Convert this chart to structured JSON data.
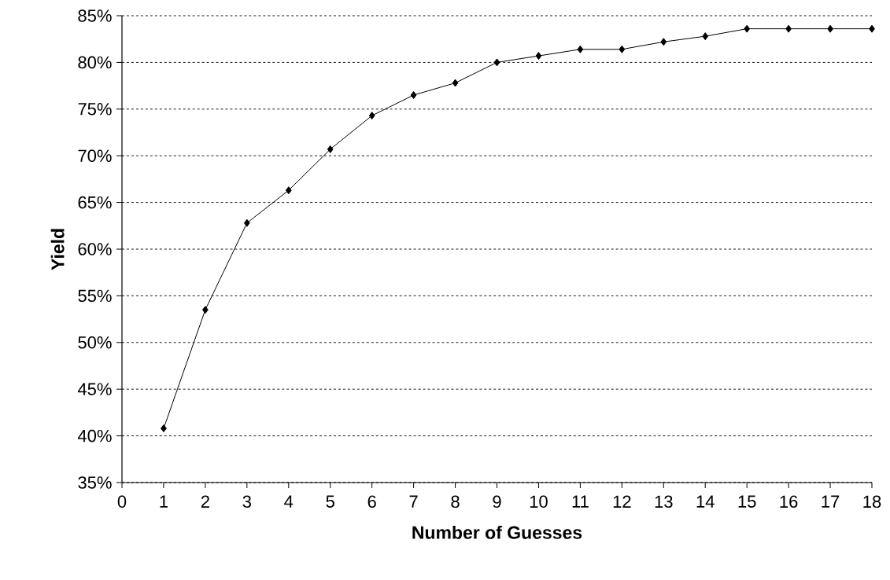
{
  "chart_data": {
    "type": "line",
    "xlabel": "Number of Guesses",
    "ylabel": "Yield",
    "x": [
      1,
      2,
      3,
      4,
      5,
      6,
      7,
      8,
      9,
      10,
      11,
      12,
      13,
      14,
      15,
      16,
      17,
      18
    ],
    "series": [
      {
        "color": "#000000",
        "values": [
          40.8,
          53.5,
          62.8,
          66.3,
          70.7,
          74.3,
          76.5,
          77.8,
          80.0,
          80.7,
          81.4,
          81.4,
          82.2,
          82.8,
          83.6,
          83.6,
          83.6,
          83.6
        ]
      }
    ],
    "xlim": [
      0,
      18
    ],
    "xticks": [
      0,
      1,
      2,
      3,
      4,
      5,
      6,
      7,
      8,
      9,
      10,
      11,
      12,
      13,
      14,
      15,
      16,
      17,
      18
    ],
    "ylim": [
      35,
      85
    ],
    "yticks": [
      {
        "value": 35,
        "label": "35%"
      },
      {
        "value": 40,
        "label": "40%"
      },
      {
        "value": 45,
        "label": "45%"
      },
      {
        "value": 50,
        "label": "50%"
      },
      {
        "value": 55,
        "label": "55%"
      },
      {
        "value": 60,
        "label": "60%"
      },
      {
        "value": 65,
        "label": "65%"
      },
      {
        "value": 70,
        "label": "70%"
      },
      {
        "value": 75,
        "label": "75%"
      },
      {
        "value": 80,
        "label": "80%"
      },
      {
        "value": 85,
        "label": "85%"
      }
    ],
    "grid": "y",
    "marker": "diamond",
    "line_style": "solid"
  }
}
